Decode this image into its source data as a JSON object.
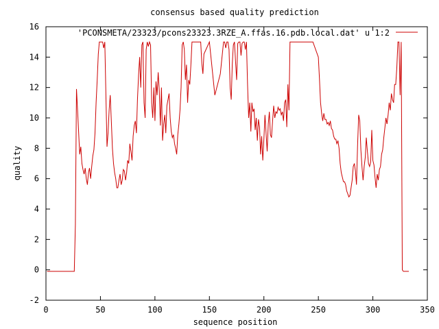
{
  "chart_data": {
    "type": "line",
    "title": "consensus based quality prediction",
    "xlabel": "sequence position",
    "ylabel": "quality",
    "xlim": [
      0,
      350
    ],
    "ylim": [
      -2,
      16
    ],
    "xticks": [
      0,
      50,
      100,
      150,
      200,
      250,
      300,
      350
    ],
    "yticks": [
      -2,
      0,
      2,
      4,
      6,
      8,
      10,
      12,
      14,
      16
    ],
    "grid": false,
    "legend_position": "top-right",
    "series": [
      {
        "name": "'PCONSMETA/23323/pcons23323.3RZE_A.ffas.16.pdb.local.dat' u 1:2",
        "color": "#cc0000",
        "x": [
          1,
          26,
          27,
          28,
          29,
          30,
          31,
          32,
          33,
          34,
          35,
          36,
          37,
          38,
          39,
          40,
          41,
          42,
          43,
          44,
          45,
          46,
          47,
          48,
          49,
          50,
          51,
          52,
          53,
          54,
          55,
          56,
          57,
          58,
          59,
          60,
          61,
          62,
          63,
          64,
          65,
          66,
          67,
          68,
          69,
          70,
          71,
          72,
          73,
          74,
          75,
          76,
          77,
          78,
          79,
          80,
          81,
          82,
          83,
          84,
          85,
          86,
          87,
          88,
          89,
          90,
          91,
          92,
          93,
          94,
          95,
          96,
          97,
          98,
          99,
          100,
          101,
          102,
          103,
          104,
          105,
          106,
          107,
          108,
          109,
          110,
          111,
          112,
          113,
          114,
          115,
          116,
          117,
          118,
          119,
          120,
          121,
          122,
          123,
          124,
          125,
          126,
          127,
          128,
          129,
          130,
          131,
          132,
          133,
          134,
          135,
          136,
          137,
          138,
          139,
          140,
          141,
          142,
          143,
          144,
          145,
          150,
          155,
          160,
          163,
          164,
          165,
          166,
          167,
          168,
          169,
          170,
          171,
          172,
          173,
          174,
          175,
          176,
          177,
          178,
          179,
          180,
          181,
          182,
          183,
          184,
          185,
          186,
          187,
          188,
          189,
          190,
          191,
          192,
          193,
          194,
          195,
          196,
          197,
          198,
          199,
          200,
          201,
          202,
          203,
          204,
          205,
          206,
          207,
          208,
          209,
          210,
          211,
          212,
          213,
          214,
          215,
          216,
          217,
          218,
          219,
          220,
          221,
          222,
          223,
          224,
          225,
          230,
          235,
          240,
          245,
          250,
          251,
          252,
          253,
          254,
          255,
          256,
          257,
          258,
          259,
          260,
          261,
          262,
          263,
          264,
          265,
          266,
          267,
          268,
          269,
          270,
          271,
          272,
          273,
          274,
          275,
          276,
          277,
          278,
          279,
          280,
          281,
          282,
          283,
          284,
          285,
          286,
          287,
          288,
          289,
          290,
          291,
          292,
          293,
          294,
          295,
          296,
          297,
          298,
          299,
          300,
          301,
          302,
          303,
          304,
          305,
          306,
          307,
          308,
          309,
          310,
          311,
          312,
          313,
          314,
          315,
          316,
          317,
          318,
          319,
          320,
          321,
          322,
          323,
          324,
          325,
          326,
          327,
          328,
          329,
          333
        ],
        "y": [
          -0.1,
          -0.1,
          3.0,
          11.9,
          10.5,
          9.0,
          7.6,
          8.1,
          7.0,
          6.6,
          6.3,
          6.7,
          6.0,
          5.6,
          6.4,
          6.7,
          6.0,
          6.8,
          7.5,
          7.9,
          9.0,
          11.0,
          12.5,
          14.2,
          15.0,
          15.0,
          15.0,
          15.0,
          14.6,
          15.0,
          11.5,
          8.1,
          9.0,
          10.5,
          11.5,
          9.8,
          8.0,
          7.0,
          6.4,
          6.0,
          5.4,
          5.4,
          5.9,
          6.3,
          5.6,
          5.9,
          6.6,
          6.5,
          5.9,
          6.4,
          7.2,
          7.0,
          8.3,
          7.8,
          7.2,
          8.8,
          9.5,
          9.8,
          9.0,
          11.2,
          12.8,
          14.0,
          12.0,
          14.8,
          15.0,
          11.0,
          10.0,
          14.5,
          15.0,
          14.7,
          15.0,
          14.8,
          11.0,
          10.0,
          12.0,
          9.8,
          12.4,
          11.5,
          13.0,
          11.8,
          9.5,
          12.0,
          8.5,
          9.6,
          10.2,
          9.0,
          10.8,
          11.2,
          11.6,
          10.0,
          9.1,
          8.7,
          8.9,
          8.3,
          8.0,
          7.6,
          8.9,
          9.6,
          10.5,
          12.0,
          14.8,
          15.0,
          14.5,
          12.5,
          13.5,
          11.0,
          12.5,
          12.2,
          13.5,
          15.0,
          15.0,
          15.0,
          15.0,
          15.0,
          15.0,
          15.0,
          15.0,
          15.0,
          13.6,
          12.9,
          14.2,
          15.0,
          11.5,
          12.9,
          15.0,
          15.0,
          14.6,
          15.0,
          15.0,
          14.5,
          12.0,
          11.2,
          13.5,
          14.8,
          15.0,
          13.7,
          12.5,
          14.9,
          15.0,
          15.0,
          14.1,
          14.9,
          15.0,
          15.0,
          14.5,
          15.0,
          12.2,
          10.0,
          11.0,
          9.1,
          11.0,
          10.4,
          10.6,
          9.2,
          10.0,
          8.5,
          9.9,
          9.4,
          7.6,
          8.8,
          7.2,
          8.6,
          10.2,
          9.0,
          7.8,
          9.6,
          10.4,
          8.9,
          8.7,
          9.8,
          10.8,
          10.0,
          10.4,
          10.3,
          10.7,
          10.5,
          10.6,
          10.2,
          10.4,
          9.8,
          11.0,
          11.2,
          9.4,
          12.2,
          10.5,
          15.0,
          15.0,
          15.0,
          15.0,
          15.0,
          15.0,
          14.0,
          12.6,
          11.0,
          10.3,
          9.8,
          10.3,
          9.9,
          9.9,
          9.6,
          9.7,
          9.5,
          9.8,
          9.3,
          9.2,
          8.8,
          8.6,
          8.6,
          8.3,
          8.5,
          8.0,
          7.0,
          6.4,
          6.1,
          5.8,
          5.8,
          5.6,
          5.2,
          5.0,
          4.8,
          4.9,
          5.4,
          5.9,
          6.8,
          7.0,
          6.5,
          5.6,
          8.2,
          10.2,
          9.8,
          7.9,
          6.8,
          5.9,
          6.8,
          7.4,
          8.7,
          7.8,
          7.0,
          6.8,
          7.1,
          9.2,
          7.2,
          6.9,
          6.1,
          5.4,
          6.3,
          5.9,
          6.6,
          6.8,
          7.6,
          7.9,
          8.7,
          9.3,
          10.0,
          9.6,
          10.2,
          11.0,
          10.5,
          11.6,
          11.2,
          11.0,
          12.2,
          12.2,
          13.3,
          15.0,
          15.0,
          11.5,
          15.0,
          0.0,
          -0.1,
          -0.1,
          -0.1
        ]
      }
    ]
  }
}
